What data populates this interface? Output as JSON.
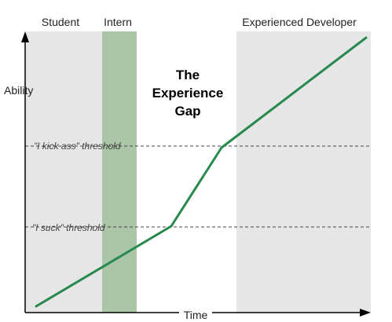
{
  "phases": {
    "student": "Student",
    "intern": "Intern",
    "experienced": "Experienced Developer"
  },
  "title": {
    "line1": "The",
    "line2": "Experience",
    "line3": "Gap"
  },
  "axes": {
    "y_label": "Ability",
    "x_label": "Time"
  },
  "thresholds": {
    "kick_ass": "\"I kick ass\" threshold",
    "suck": "\"I suck\" threshold"
  },
  "colors": {
    "student_band": "#e6e6e6",
    "intern_band": "#abc6a6",
    "experienced_band": "#e6e6e6",
    "curve": "#27894d",
    "threshold_line": "#444444",
    "axis": "#000000"
  },
  "icons": {
    "x_axis_arrow": "arrow-right-icon",
    "y_axis_arrow": "arrow-up-icon"
  }
}
